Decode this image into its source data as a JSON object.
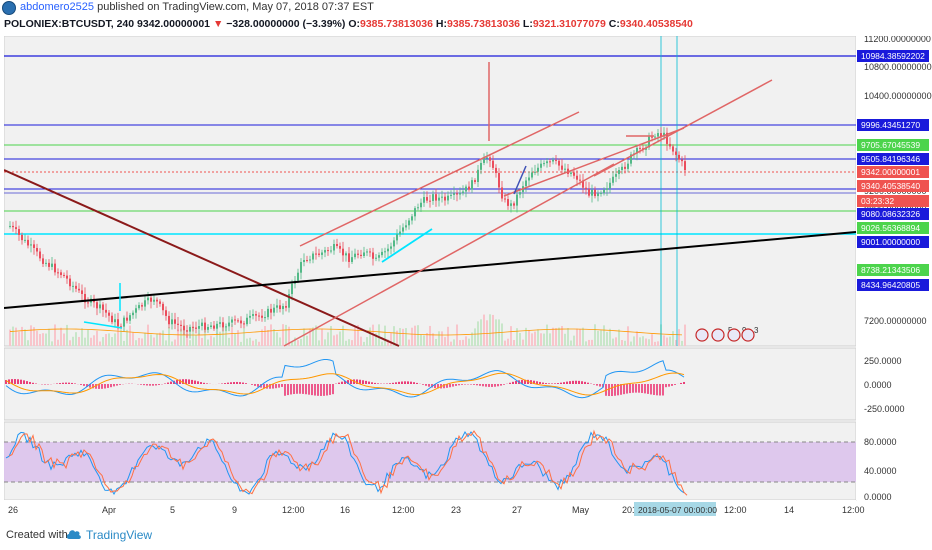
{
  "header": {
    "author": "abdomero2525",
    "published_text": "published on TradingView.com, May 07, 2018 07:37 EST",
    "symbol": "POLONIEX:BTCUSDT, 240",
    "last_price": "9342.00000001",
    "change_arrow": "▼",
    "change": "−328.00000000 (−3.39%)",
    "open_label": "O:",
    "open": "9385.73813036",
    "high_label": "H:",
    "high": "9385.73813036",
    "low_label": "L:",
    "low": "9321.31077079",
    "close_label": "C:",
    "close": "9340.40538540"
  },
  "price_axis": {
    "ticks": [
      "11200.00000000",
      "10800.00000000",
      "10400.00000000",
      "9200.00000000",
      "8800.00000000",
      "7200.00000000"
    ],
    "level_labels": [
      {
        "text": "10984.38592202",
        "color": "#1a1adb"
      },
      {
        "text": "9996.43451270",
        "color": "#1a1adb"
      },
      {
        "text": "9705.67045539",
        "color": "#4cd44c"
      },
      {
        "text": "9505.84196346",
        "color": "#1a1adb"
      },
      {
        "text": "9342.00000001",
        "color": "#ef5350"
      },
      {
        "text": "9340.40538540",
        "color": "#ef5350"
      },
      {
        "text": "03:23:32",
        "color": "#ef5350"
      },
      {
        "text": "9080.08632326",
        "color": "#1a1adb"
      },
      {
        "text": "9026.56368894",
        "color": "#4cd44c"
      },
      {
        "text": "9001.00000000",
        "color": "#1a1adb"
      },
      {
        "text": "8738.21343506",
        "color": "#4cd44c"
      },
      {
        "text": "8434.96420805",
        "color": "#1a1adb"
      }
    ]
  },
  "macd_axis": {
    "ticks": [
      "250.0000",
      "0.0000",
      "-250.0000"
    ]
  },
  "stoch_axis": {
    "ticks": [
      "80.0000",
      "40.0000",
      "0.0000"
    ]
  },
  "time_axis": {
    "ticks": [
      "26",
      "Apr",
      "5",
      "9",
      "12:00",
      "16",
      "12:00",
      "23",
      "27",
      "May",
      "201",
      "12:00",
      "14",
      "12:00"
    ],
    "cursor_label": "2018-05-07 00:00:00"
  },
  "event_badges": [
    "5",
    "9",
    "3"
  ],
  "footer": {
    "created_with": "Created with",
    "brand": "TradingView"
  },
  "colors": {
    "bull": "#53b987",
    "bear": "#eb4d5c",
    "blue_level": "#1a1adb",
    "green_level": "#4cd44c",
    "cyan_level": "#00e5ff",
    "channel": "#e06666",
    "downtrend": "#8b1a1a",
    "trend": "#000000",
    "macd": "#2196f3",
    "signal": "#ff9800",
    "stoch_bg": "#e1bee7"
  }
}
